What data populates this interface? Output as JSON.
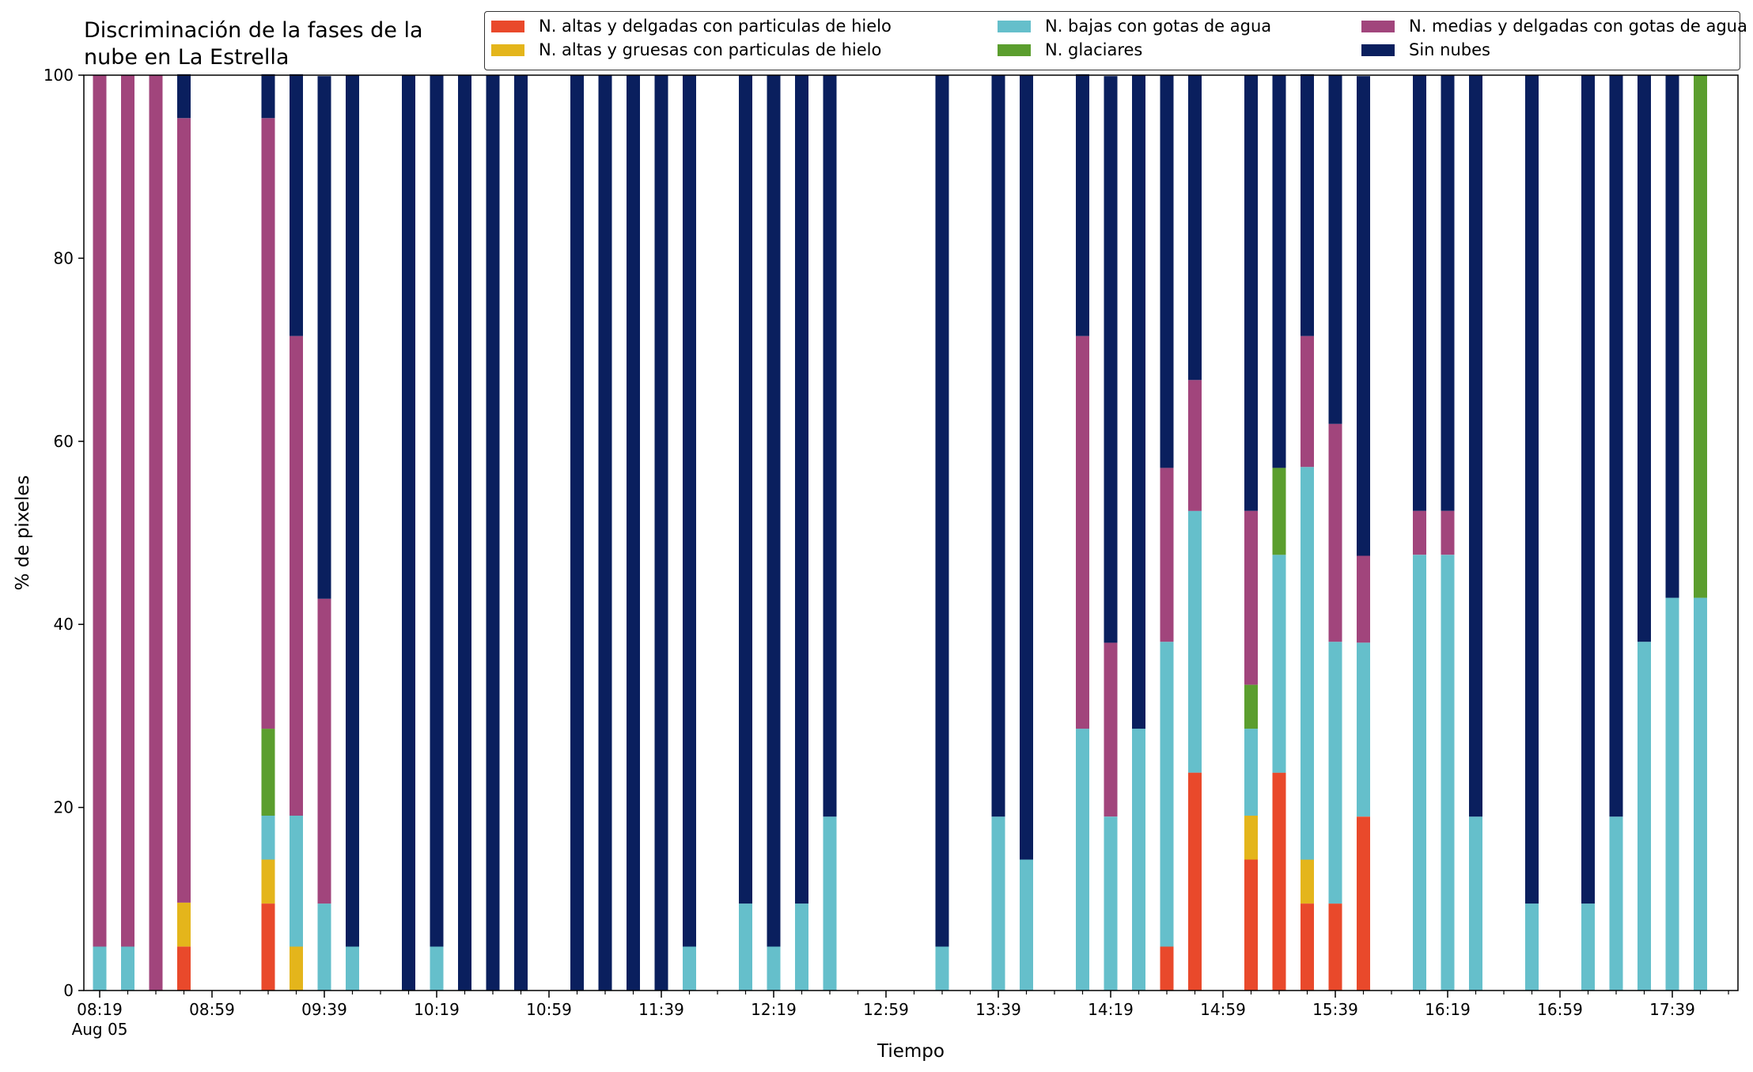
{
  "chart_data": {
    "type": "bar",
    "stacked": true,
    "title_lines": [
      "Discriminación de la fases de la",
      "nube en La Estrella"
    ],
    "xlabel": "Tiempo",
    "ylabel": "% de pixeles",
    "ylim": [
      0,
      100
    ],
    "yticks": [
      "0",
      "20",
      "40",
      "60",
      "80",
      "100"
    ],
    "xticks": [
      "08:19",
      "08:59",
      "09:39",
      "10:19",
      "10:59",
      "11:39",
      "12:19",
      "12:59",
      "13:39",
      "14:19",
      "14:59",
      "15:39",
      "16:19",
      "16:59",
      "17:39"
    ],
    "xtick_sub": "Aug 05",
    "legend_position": "top-right",
    "grid": false,
    "series": [
      {
        "name": "N. altas y delgadas con particulas de hielo",
        "color": "#E9492B"
      },
      {
        "name": "N. altas y gruesas con particulas de hielo",
        "color": "#E4B51B"
      },
      {
        "name": "N. bajas con gotas de agua",
        "color": "#65BFCB"
      },
      {
        "name": "N. glaciares",
        "color": "#5B9E2E"
      },
      {
        "name": "N. medias y delgadas con gotas de agua",
        "color": "#A1457C"
      },
      {
        "name": "Sin nubes",
        "color": "#0A1F5E"
      }
    ],
    "bars": [
      {
        "time": "08:19",
        "values": [
          0,
          0,
          4.8,
          0,
          95.2,
          0
        ]
      },
      {
        "time": "08:29",
        "values": [
          0,
          0,
          4.8,
          0,
          95.2,
          0
        ]
      },
      {
        "time": "08:39",
        "values": [
          0,
          0,
          0,
          0,
          100,
          0
        ]
      },
      {
        "time": "08:49",
        "values": [
          4.8,
          4.8,
          0,
          0,
          85.7,
          4.8
        ]
      },
      {
        "time": "09:19",
        "values": [
          9.5,
          4.8,
          4.8,
          9.5,
          66.7,
          4.8
        ]
      },
      {
        "time": "09:29",
        "values": [
          0,
          4.8,
          14.3,
          0,
          52.4,
          28.6
        ]
      },
      {
        "time": "09:39",
        "values": [
          0,
          0,
          9.5,
          0,
          33.3,
          57.1
        ]
      },
      {
        "time": "09:49",
        "values": [
          0,
          0,
          4.8,
          0,
          0,
          95.2
        ]
      },
      {
        "time": "10:09",
        "values": [
          0,
          0,
          0,
          0,
          0,
          100
        ]
      },
      {
        "time": "10:19",
        "values": [
          0,
          0,
          4.8,
          0,
          0,
          95.2
        ]
      },
      {
        "time": "10:29",
        "values": [
          0,
          0,
          0,
          0,
          0,
          100
        ]
      },
      {
        "time": "10:39",
        "values": [
          0,
          0,
          0,
          0,
          0,
          100
        ]
      },
      {
        "time": "10:49",
        "values": [
          0,
          0,
          0,
          0,
          0,
          100
        ]
      },
      {
        "time": "11:09",
        "values": [
          0,
          0,
          0,
          0,
          0,
          100
        ]
      },
      {
        "time": "11:19",
        "values": [
          0,
          0,
          0,
          0,
          0,
          100
        ]
      },
      {
        "time": "11:29",
        "values": [
          0,
          0,
          0,
          0,
          0,
          100
        ]
      },
      {
        "time": "11:39",
        "values": [
          0,
          0,
          0,
          0,
          0,
          100
        ]
      },
      {
        "time": "11:49",
        "values": [
          0,
          0,
          4.8,
          0,
          0,
          95.2
        ]
      },
      {
        "time": "12:09",
        "values": [
          0,
          0,
          9.5,
          0,
          0,
          90.5
        ]
      },
      {
        "time": "12:19",
        "values": [
          0,
          0,
          4.8,
          0,
          0,
          95.2
        ]
      },
      {
        "time": "12:29",
        "values": [
          0,
          0,
          9.5,
          0,
          0,
          90.5
        ]
      },
      {
        "time": "12:39",
        "values": [
          0,
          0,
          19,
          0,
          0,
          81
        ]
      },
      {
        "time": "13:19",
        "values": [
          0,
          0,
          4.8,
          0,
          0,
          95.2
        ]
      },
      {
        "time": "13:39",
        "values": [
          0,
          0,
          19,
          0,
          0,
          81
        ]
      },
      {
        "time": "13:49",
        "values": [
          0,
          0,
          14.3,
          0,
          0,
          85.7
        ]
      },
      {
        "time": "14:09",
        "values": [
          0,
          0,
          28.6,
          0,
          42.9,
          28.6
        ]
      },
      {
        "time": "14:19",
        "values": [
          0,
          0,
          19,
          0,
          19,
          61.9
        ]
      },
      {
        "time": "14:29",
        "values": [
          0,
          0,
          28.6,
          0,
          0,
          71.4
        ]
      },
      {
        "time": "14:39",
        "values": [
          4.8,
          0,
          33.3,
          0,
          19,
          42.9
        ]
      },
      {
        "time": "14:49",
        "values": [
          23.8,
          0,
          28.6,
          0,
          14.3,
          33.3
        ]
      },
      {
        "time": "15:09",
        "values": [
          14.3,
          4.8,
          9.5,
          4.8,
          19,
          47.6
        ]
      },
      {
        "time": "15:19",
        "values": [
          23.8,
          0,
          23.8,
          9.5,
          0,
          42.9
        ]
      },
      {
        "time": "15:29",
        "values": [
          9.5,
          4.8,
          42.9,
          0,
          14.3,
          28.6
        ]
      },
      {
        "time": "15:39",
        "values": [
          9.5,
          0,
          28.6,
          0,
          23.8,
          38.1
        ]
      },
      {
        "time": "15:49",
        "values": [
          19,
          0,
          19,
          0,
          9.5,
          52.4
        ]
      },
      {
        "time": "16:09",
        "values": [
          0,
          0,
          47.6,
          0,
          4.8,
          47.6
        ]
      },
      {
        "time": "16:19",
        "values": [
          0,
          0,
          47.6,
          0,
          4.8,
          47.6
        ]
      },
      {
        "time": "16:29",
        "values": [
          0,
          0,
          19,
          0,
          0,
          81
        ]
      },
      {
        "time": "16:49",
        "values": [
          0,
          0,
          9.5,
          0,
          0,
          90.5
        ]
      },
      {
        "time": "17:09",
        "values": [
          0,
          0,
          9.5,
          0,
          0,
          90.5
        ]
      },
      {
        "time": "17:19",
        "values": [
          0,
          0,
          19,
          0,
          0,
          81
        ]
      },
      {
        "time": "17:29",
        "values": [
          0,
          0,
          38.1,
          0,
          0,
          61.9
        ]
      },
      {
        "time": "17:39",
        "values": [
          0,
          0,
          42.9,
          0,
          0,
          57.1
        ]
      },
      {
        "time": "17:49",
        "values": [
          0,
          0,
          42.9,
          57.1,
          0,
          0
        ]
      }
    ]
  }
}
